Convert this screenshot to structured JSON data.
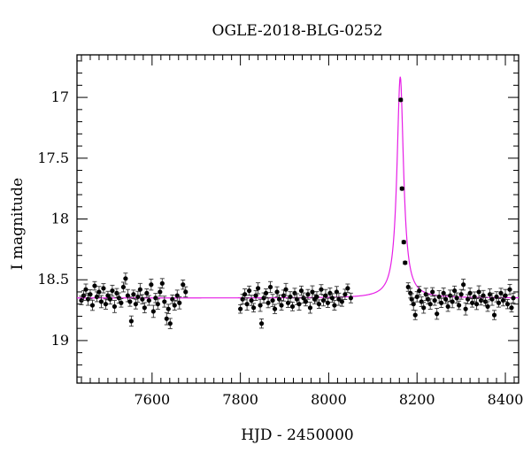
{
  "chart_data": {
    "type": "scatter",
    "title": "OGLE-2018-BLG-0252",
    "xlabel": "HJD - 2450000",
    "ylabel": "I magnitude",
    "xlim": [
      7430,
      8430
    ],
    "ylim": [
      19.35,
      16.65
    ],
    "y_inverted": true,
    "x_ticks": [
      7600,
      7800,
      8000,
      8200,
      8400
    ],
    "y_ticks": [
      17,
      17.5,
      18,
      18.5,
      19
    ],
    "baseline_magnitude": 18.65,
    "peak": {
      "x": 8162,
      "y": 16.83
    },
    "grid": false,
    "colors": {
      "points": "#000000",
      "model": "#e61ee6"
    },
    "series": [
      {
        "points": [
          [
            7440,
            18.67
          ],
          [
            7445,
            18.63
          ],
          [
            7450,
            18.58
          ],
          [
            7455,
            18.66
          ],
          [
            7460,
            18.62
          ],
          [
            7465,
            18.71
          ],
          [
            7470,
            18.55
          ],
          [
            7475,
            18.64
          ],
          [
            7480,
            18.6
          ],
          [
            7485,
            18.68
          ],
          [
            7490,
            18.57
          ],
          [
            7495,
            18.7
          ],
          [
            7500,
            18.63
          ],
          [
            7505,
            18.66
          ],
          [
            7510,
            18.59
          ],
          [
            7515,
            18.72
          ],
          [
            7520,
            18.61
          ],
          [
            7525,
            18.65
          ],
          [
            7530,
            18.69
          ],
          [
            7535,
            18.56
          ],
          [
            7540,
            18.49
          ],
          [
            7545,
            18.63
          ],
          [
            7550,
            18.68
          ],
          [
            7553,
            18.84
          ],
          [
            7558,
            18.62
          ],
          [
            7563,
            18.7
          ],
          [
            7568,
            18.64
          ],
          [
            7573,
            18.58
          ],
          [
            7578,
            18.66
          ],
          [
            7583,
            18.73
          ],
          [
            7588,
            18.61
          ],
          [
            7593,
            18.67
          ],
          [
            7598,
            18.54
          ],
          [
            7603,
            18.76
          ],
          [
            7608,
            18.65
          ],
          [
            7613,
            18.7
          ],
          [
            7618,
            18.6
          ],
          [
            7623,
            18.53
          ],
          [
            7628,
            18.68
          ],
          [
            7633,
            18.82
          ],
          [
            7637,
            18.74
          ],
          [
            7641,
            18.86
          ],
          [
            7646,
            18.66
          ],
          [
            7651,
            18.71
          ],
          [
            7657,
            18.63
          ],
          [
            7662,
            18.69
          ],
          [
            7670,
            18.54
          ],
          [
            7676,
            18.6
          ],
          [
            7800,
            18.74
          ],
          [
            7805,
            18.66
          ],
          [
            7810,
            18.62
          ],
          [
            7815,
            18.7
          ],
          [
            7820,
            18.59
          ],
          [
            7825,
            18.67
          ],
          [
            7830,
            18.73
          ],
          [
            7835,
            18.63
          ],
          [
            7840,
            18.57
          ],
          [
            7845,
            18.71
          ],
          [
            7848,
            18.86
          ],
          [
            7853,
            18.65
          ],
          [
            7858,
            18.61
          ],
          [
            7863,
            18.69
          ],
          [
            7868,
            18.56
          ],
          [
            7873,
            18.67
          ],
          [
            7878,
            18.74
          ],
          [
            7883,
            18.6
          ],
          [
            7888,
            18.66
          ],
          [
            7893,
            18.71
          ],
          [
            7898,
            18.63
          ],
          [
            7903,
            18.58
          ],
          [
            7908,
            18.69
          ],
          [
            7913,
            18.64
          ],
          [
            7918,
            18.72
          ],
          [
            7923,
            18.61
          ],
          [
            7928,
            18.66
          ],
          [
            7933,
            18.7
          ],
          [
            7938,
            18.59
          ],
          [
            7943,
            18.65
          ],
          [
            7948,
            18.68
          ],
          [
            7953,
            18.62
          ],
          [
            7958,
            18.73
          ],
          [
            7963,
            18.6
          ],
          [
            7968,
            18.66
          ],
          [
            7973,
            18.64
          ],
          [
            7978,
            18.7
          ],
          [
            7983,
            18.58
          ],
          [
            7988,
            18.67
          ],
          [
            7993,
            18.63
          ],
          [
            7998,
            18.69
          ],
          [
            8003,
            18.61
          ],
          [
            8008,
            18.65
          ],
          [
            8013,
            18.71
          ],
          [
            8018,
            18.6
          ],
          [
            8023,
            18.66
          ],
          [
            8030,
            18.68
          ],
          [
            8037,
            18.62
          ],
          [
            8043,
            18.57
          ],
          [
            8050,
            18.65
          ],
          [
            8163,
            17.02
          ],
          [
            8166,
            17.75
          ],
          [
            8170,
            18.19
          ],
          [
            8173,
            18.36
          ],
          [
            8180,
            18.56
          ],
          [
            8185,
            18.61
          ],
          [
            8188,
            18.66
          ],
          [
            8192,
            18.7
          ],
          [
            8196,
            18.79
          ],
          [
            8200,
            18.64
          ],
          [
            8205,
            18.59
          ],
          [
            8210,
            18.68
          ],
          [
            8215,
            18.73
          ],
          [
            8220,
            18.62
          ],
          [
            8225,
            18.66
          ],
          [
            8230,
            18.7
          ],
          [
            8235,
            18.6
          ],
          [
            8240,
            18.67
          ],
          [
            8245,
            18.78
          ],
          [
            8250,
            18.64
          ],
          [
            8255,
            18.69
          ],
          [
            8260,
            18.61
          ],
          [
            8265,
            18.66
          ],
          [
            8270,
            18.72
          ],
          [
            8275,
            18.63
          ],
          [
            8280,
            18.68
          ],
          [
            8285,
            18.59
          ],
          [
            8290,
            18.65
          ],
          [
            8295,
            18.71
          ],
          [
            8300,
            18.62
          ],
          [
            8305,
            18.54
          ],
          [
            8310,
            18.74
          ],
          [
            8315,
            18.66
          ],
          [
            8320,
            18.61
          ],
          [
            8325,
            18.69
          ],
          [
            8330,
            18.64
          ],
          [
            8335,
            18.7
          ],
          [
            8340,
            18.6
          ],
          [
            8345,
            18.67
          ],
          [
            8350,
            18.63
          ],
          [
            8355,
            18.68
          ],
          [
            8360,
            18.72
          ],
          [
            8365,
            18.62
          ],
          [
            8370,
            18.66
          ],
          [
            8375,
            18.79
          ],
          [
            8380,
            18.64
          ],
          [
            8385,
            18.69
          ],
          [
            8390,
            18.61
          ],
          [
            8395,
            18.67
          ],
          [
            8400,
            18.63
          ],
          [
            8405,
            18.7
          ],
          [
            8410,
            18.58
          ],
          [
            8414,
            18.73
          ],
          [
            8418,
            18.65
          ]
        ]
      }
    ]
  }
}
